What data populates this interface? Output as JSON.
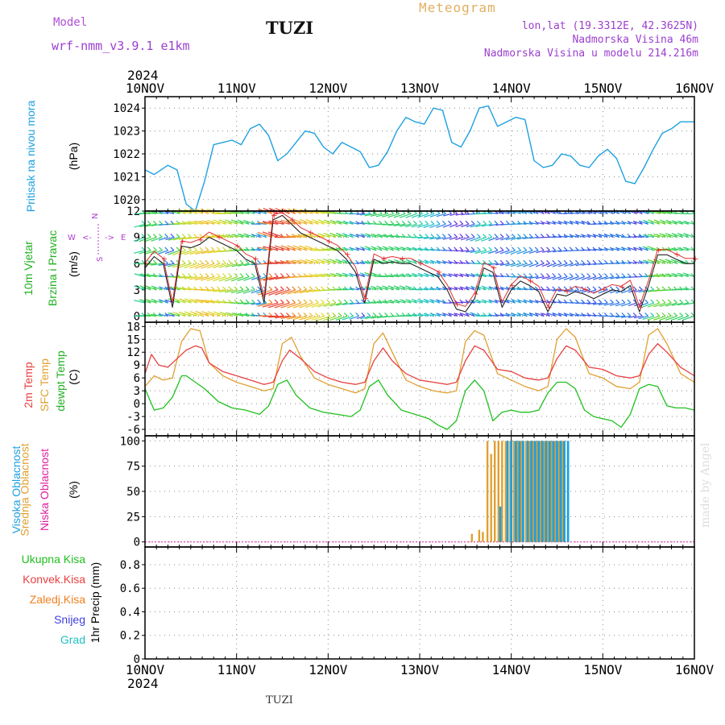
{
  "header": {
    "model_label": "Model",
    "model_version": "wrf-nmm_v3.9.1 e1km",
    "title": "TUZI",
    "meteogram_label": "Meteogram",
    "lonlat": "lon,lat (19.3312E, 42.3625N)",
    "elevation": "Nadmorska Visina 46m",
    "model_elevation": "Nadmorska Visina u modelu 214.216m"
  },
  "footer": {
    "station": "TUZI",
    "made_by": "made by Angel"
  },
  "colors": {
    "pressure": "#1ea0e0",
    "temp2m": "#e84040",
    "sfc_temp": "#e0a030",
    "dewpt": "#20c020",
    "high_cloud": "#1ea0e0",
    "mid_cloud": "#e0a030",
    "low_cloud": "#e020a0",
    "wind_dir": "#b040d0",
    "wind_label": "#20b020"
  },
  "chart_data": {
    "type": "line",
    "x_axis": {
      "year": "2024",
      "ticks": [
        "10NOV",
        "11NOV",
        "12NOV",
        "13NOV",
        "14NOV",
        "15NOV",
        "16NOV"
      ],
      "range_days": [
        0,
        6
      ]
    },
    "panels": [
      {
        "id": "pressure",
        "ylabel": "Pritisak na nivou mora",
        "unit": "(hPa)",
        "yticks": [
          1020,
          1021,
          1022,
          1023,
          1024
        ],
        "ylim": [
          1019.5,
          1024.5
        ],
        "series": [
          {
            "color_key": "pressure",
            "x": [
              0,
              0.1,
              0.25,
              0.35,
              0.45,
              0.55,
              0.65,
              0.75,
              0.85,
              0.95,
              1.05,
              1.15,
              1.25,
              1.35,
              1.45,
              1.55,
              1.65,
              1.75,
              1.85,
              1.95,
              2.05,
              2.15,
              2.25,
              2.35,
              2.45,
              2.55,
              2.65,
              2.75,
              2.85,
              2.95,
              3.05,
              3.15,
              3.25,
              3.35,
              3.45,
              3.55,
              3.65,
              3.75,
              3.85,
              3.95,
              4.05,
              4.15,
              4.25,
              4.35,
              4.45,
              4.55,
              4.65,
              4.75,
              4.85,
              4.95,
              5.05,
              5.15,
              5.25,
              5.35,
              5.45,
              5.55,
              5.65,
              5.75,
              5.85,
              5.95,
              6.0
            ],
            "values": [
              1021.3,
              1021.1,
              1021.5,
              1021.3,
              1019.8,
              1019.5,
              1020.8,
              1022.4,
              1022.5,
              1022.6,
              1022.4,
              1023.1,
              1023.3,
              1022.8,
              1021.7,
              1022.0,
              1022.5,
              1023.0,
              1022.9,
              1022.3,
              1022.0,
              1022.5,
              1022.3,
              1022.1,
              1021.4,
              1021.5,
              1022.1,
              1023.0,
              1023.6,
              1023.4,
              1023.3,
              1024.0,
              1023.9,
              1022.5,
              1022.3,
              1023.0,
              1024.0,
              1024.1,
              1023.2,
              1023.4,
              1023.6,
              1023.5,
              1021.7,
              1021.4,
              1021.5,
              1022.0,
              1021.9,
              1021.5,
              1021.4,
              1021.9,
              1022.2,
              1021.8,
              1020.8,
              1020.7,
              1021.4,
              1022.2,
              1022.9,
              1023.1,
              1023.4,
              1023.4,
              1023.4
            ]
          }
        ]
      },
      {
        "id": "wind",
        "ylabel": "10m Vjetar",
        "ylabel2": "Brzina i Pravac",
        "unit": "(m/s)",
        "compass": [
          "N",
          "W",
          "E",
          "S",
          "<-",
          "->"
        ],
        "yticks": [
          0,
          3,
          6,
          9,
          12
        ],
        "ylim": [
          -0.7,
          12
        ],
        "series": [
          {
            "name": "wind_speed",
            "x": [
              0,
              0.1,
              0.2,
              0.3,
              0.4,
              0.5,
              0.6,
              0.7,
              0.8,
              0.9,
              1.0,
              1.1,
              1.2,
              1.3,
              1.4,
              1.5,
              1.6,
              1.7,
              1.8,
              1.9,
              2.0,
              2.1,
              2.2,
              2.3,
              2.4,
              2.5,
              2.6,
              2.7,
              2.8,
              2.9,
              3.0,
              3.1,
              3.2,
              3.3,
              3.4,
              3.5,
              3.6,
              3.7,
              3.8,
              3.9,
              4.0,
              4.1,
              4.2,
              4.3,
              4.4,
              4.5,
              4.6,
              4.7,
              4.8,
              4.9,
              5.0,
              5.1,
              5.2,
              5.3,
              5.4,
              5.5,
              5.6,
              5.7,
              5.8,
              5.9,
              6.0
            ],
            "values": [
              5.5,
              6.8,
              6.0,
              1.0,
              8.0,
              7.8,
              8.2,
              9.0,
              8.5,
              8.0,
              7.5,
              6.5,
              6.0,
              1.5,
              11.0,
              11.5,
              10.5,
              9.5,
              9.0,
              8.5,
              8.0,
              7.5,
              6.5,
              5.0,
              1.5,
              6.5,
              6.0,
              6.2,
              6.0,
              6.0,
              5.5,
              5.0,
              4.5,
              3.0,
              0.8,
              0.5,
              2.0,
              5.5,
              5.0,
              1.0,
              3.0,
              4.0,
              3.5,
              2.8,
              0.5,
              2.5,
              2.3,
              2.8,
              2.5,
              2.0,
              2.5,
              3.0,
              2.8,
              3.5,
              0.5,
              3.5,
              7.0,
              7.0,
              6.5,
              6.0,
              6.0
            ]
          }
        ]
      },
      {
        "id": "temperature",
        "ylabel": "2m Temp",
        "ylabel2": "SFC Temp",
        "ylabel3": "dewpt Temp",
        "unit": "(C)",
        "yticks": [
          -6,
          -3,
          0,
          3,
          6,
          9,
          12,
          15,
          18
        ],
        "ylim": [
          -7.5,
          19
        ],
        "series": [
          {
            "color_key": "temp2m",
            "x": [
              0,
              0.07,
              0.15,
              0.25,
              0.35,
              0.45,
              0.55,
              0.62,
              0.7,
              0.85,
              1.0,
              1.15,
              1.3,
              1.4,
              1.5,
              1.58,
              1.7,
              1.85,
              2.0,
              2.15,
              2.3,
              2.4,
              2.5,
              2.6,
              2.7,
              2.85,
              3.0,
              3.15,
              3.3,
              3.4,
              3.5,
              3.6,
              3.7,
              3.85,
              4.0,
              4.15,
              4.3,
              4.4,
              4.5,
              4.6,
              4.7,
              4.85,
              5.0,
              5.15,
              5.3,
              5.4,
              5.5,
              5.6,
              5.7,
              5.85,
              6.0
            ],
            "values": [
              7.0,
              11.5,
              9.0,
              8.5,
              10.5,
              12.5,
              13.5,
              13.0,
              9.5,
              7.5,
              6.5,
              5.5,
              4.5,
              5.0,
              10.0,
              12.5,
              10.5,
              7.5,
              6.0,
              5.0,
              4.5,
              5.0,
              10.0,
              13.0,
              10.0,
              7.0,
              5.5,
              5.0,
              4.5,
              5.0,
              10.0,
              13.5,
              12.5,
              8.0,
              7.5,
              6.0,
              5.5,
              6.0,
              10.5,
              13.5,
              12.5,
              8.5,
              8.0,
              6.5,
              6.0,
              6.5,
              11.5,
              14.0,
              12.0,
              8.5,
              6.5
            ]
          },
          {
            "color_key": "sfc_temp",
            "x": [
              0,
              0.1,
              0.2,
              0.3,
              0.4,
              0.5,
              0.6,
              0.7,
              0.85,
              1.0,
              1.15,
              1.3,
              1.4,
              1.5,
              1.6,
              1.7,
              1.85,
              2.0,
              2.15,
              2.3,
              2.4,
              2.5,
              2.6,
              2.7,
              2.85,
              3.0,
              3.15,
              3.3,
              3.4,
              3.5,
              3.6,
              3.7,
              3.85,
              4.0,
              4.15,
              4.3,
              4.4,
              4.5,
              4.6,
              4.7,
              4.85,
              5.0,
              5.15,
              5.3,
              5.4,
              5.5,
              5.6,
              5.7,
              5.85,
              6.0
            ],
            "values": [
              4.0,
              6.5,
              5.5,
              6.0,
              14.5,
              17.5,
              17.0,
              9.5,
              6.5,
              5.0,
              4.0,
              3.0,
              3.5,
              14.0,
              15.5,
              11.0,
              6.0,
              4.5,
              3.5,
              2.5,
              3.5,
              14.0,
              16.5,
              12.0,
              5.5,
              4.0,
              3.0,
              2.5,
              3.0,
              14.5,
              17.0,
              16.0,
              7.0,
              5.5,
              4.0,
              3.0,
              4.0,
              15.0,
              17.5,
              15.5,
              7.0,
              6.0,
              4.0,
              3.5,
              5.0,
              16.0,
              17.5,
              14.0,
              7.0,
              5.0
            ]
          },
          {
            "color_key": "dewpt",
            "x": [
              0,
              0.1,
              0.2,
              0.3,
              0.4,
              0.45,
              0.55,
              0.65,
              0.8,
              0.95,
              1.1,
              1.25,
              1.35,
              1.45,
              1.55,
              1.65,
              1.8,
              1.95,
              2.1,
              2.25,
              2.35,
              2.45,
              2.55,
              2.65,
              2.8,
              2.95,
              3.1,
              3.2,
              3.3,
              3.4,
              3.5,
              3.6,
              3.7,
              3.8,
              3.9,
              4.0,
              4.1,
              4.2,
              4.3,
              4.4,
              4.5,
              4.6,
              4.7,
              4.8,
              4.9,
              5.0,
              5.1,
              5.2,
              5.3,
              5.4,
              5.5,
              5.6,
              5.7,
              5.8,
              5.9,
              6.0
            ],
            "values": [
              3.5,
              -1.5,
              -1.0,
              1.5,
              6.5,
              6.5,
              5.0,
              3.5,
              0.5,
              -1.0,
              -1.5,
              -2.5,
              -0.5,
              4.5,
              5.5,
              2.0,
              -1.0,
              -2.0,
              -2.5,
              -3.0,
              -1.5,
              4.0,
              5.5,
              2.0,
              -1.5,
              -2.5,
              -3.5,
              -5.0,
              -6.0,
              -4.0,
              3.0,
              5.5,
              3.0,
              -4.0,
              -2.0,
              -1.5,
              -2.0,
              -2.0,
              -1.5,
              2.5,
              5.0,
              5.0,
              3.5,
              -1.5,
              -3.0,
              -3.5,
              -4.0,
              -5.5,
              -2.5,
              3.5,
              4.5,
              4.0,
              -0.5,
              -1.0,
              -1.0,
              -1.5
            ]
          }
        ]
      },
      {
        "id": "cloud",
        "ylabel": "Visoka Oblacnost",
        "ylabel2": "Srednja Oblacnost",
        "ylabel3": "Niska Oblacnost",
        "unit": "(%)",
        "type": "bar",
        "yticks": [
          0,
          25,
          50,
          75,
          100
        ],
        "ylim": [
          -5,
          105
        ],
        "mid_bars": {
          "x": [
            3.57,
            3.65,
            3.69,
            3.74,
            3.78,
            3.82,
            3.86,
            3.9,
            3.94,
            3.99,
            4.03,
            4.07,
            4.11,
            4.16,
            4.2,
            4.24,
            4.28,
            4.32,
            4.36,
            4.4,
            4.44,
            4.48,
            4.52,
            4.56
          ],
          "values": [
            8,
            12,
            10,
            100,
            87,
            100,
            100,
            100,
            100,
            100,
            100,
            100,
            100,
            100,
            100,
            100,
            100,
            100,
            100,
            100,
            100,
            100,
            100,
            100
          ]
        },
        "high_bars": {
          "x": [
            3.88,
            3.96,
            4.0,
            4.05,
            4.09,
            4.13,
            4.18,
            4.22,
            4.26,
            4.3,
            4.34,
            4.38,
            4.42,
            4.46,
            4.5,
            4.54,
            4.58,
            4.62
          ],
          "values": [
            35,
            100,
            100,
            100,
            100,
            100,
            100,
            100,
            100,
            100,
            100,
            100,
            100,
            100,
            100,
            100,
            100,
            100
          ]
        }
      },
      {
        "id": "precip",
        "ylabel": "1hr Precip (mm)",
        "yticks": [
          0,
          0.2,
          0.4,
          0.6,
          0.8
        ],
        "ylim": [
          0,
          0.95
        ],
        "legend": [
          {
            "label": "Ukupna Kisa",
            "color": "#20c020"
          },
          {
            "label": "Konvek.Kisa",
            "color": "#e84040"
          },
          {
            "label": "Zaledj.Kisa",
            "color": "#f08020"
          },
          {
            "label": "Snijeg",
            "color": "#4040e0"
          },
          {
            "label": "Grad",
            "color": "#20c0c0"
          }
        ],
        "series": []
      }
    ]
  }
}
